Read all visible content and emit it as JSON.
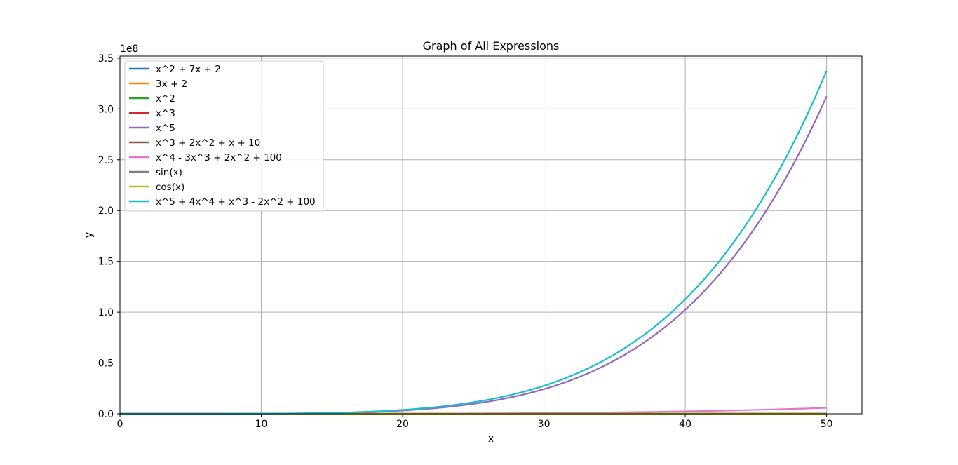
{
  "chart_data": {
    "type": "line",
    "title": "Graph of All Expressions",
    "xlabel": "x",
    "ylabel": "y",
    "offset_text": "1e8",
    "xlim": [
      0,
      52.5
    ],
    "ylim": [
      0,
      352000000.0
    ],
    "x_ticks": [
      0,
      10,
      20,
      30,
      40,
      50
    ],
    "x_tick_labels": [
      "0",
      "10",
      "20",
      "30",
      "40",
      "50"
    ],
    "y_ticks": [
      0,
      50000000.0,
      100000000.0,
      150000000.0,
      200000000.0,
      250000000.0,
      300000000.0,
      350000000.0
    ],
    "y_tick_labels": [
      "0.0",
      "0.5",
      "1.0",
      "1.5",
      "2.0",
      "2.5",
      "3.0",
      "3.5"
    ],
    "grid": true,
    "legend_position": "upper-left",
    "x_domain": [
      0,
      50
    ],
    "series": [
      {
        "name": "x^2 + 7x + 2",
        "color": "#1f77b4",
        "expr": "poly",
        "coeffs": [
          2,
          7,
          1
        ]
      },
      {
        "name": "3x + 2",
        "color": "#ff7f0e",
        "expr": "poly",
        "coeffs": [
          2,
          3
        ]
      },
      {
        "name": "x^2",
        "color": "#2ca02c",
        "expr": "poly",
        "coeffs": [
          0,
          0,
          1
        ]
      },
      {
        "name": "x^3",
        "color": "#d62728",
        "expr": "poly",
        "coeffs": [
          0,
          0,
          0,
          1
        ]
      },
      {
        "name": "x^5",
        "color": "#9467bd",
        "expr": "poly",
        "coeffs": [
          0,
          0,
          0,
          0,
          0,
          1
        ]
      },
      {
        "name": "x^3 + 2x^2 + x + 10",
        "color": "#8c564b",
        "expr": "poly",
        "coeffs": [
          10,
          1,
          2,
          1
        ]
      },
      {
        "name": "x^4 - 3x^3 + 2x^2 + 100",
        "color": "#e377c2",
        "expr": "poly",
        "coeffs": [
          100,
          0,
          2,
          -3,
          1
        ]
      },
      {
        "name": "sin(x)",
        "color": "#7f7f7f",
        "expr": "sin"
      },
      {
        "name": "cos(x)",
        "color": "#bcbd22",
        "expr": "cos"
      },
      {
        "name": "x^5 + 4x^4 + x^3 - 2x^2 + 100",
        "color": "#17becf",
        "expr": "poly",
        "coeffs": [
          100,
          0,
          -2,
          1,
          4,
          1
        ]
      }
    ]
  }
}
